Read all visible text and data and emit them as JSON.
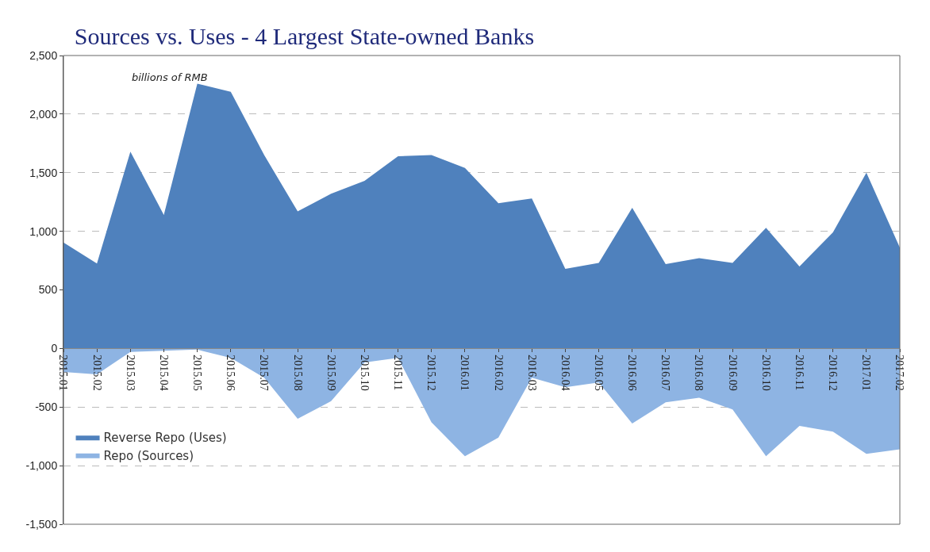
{
  "chart_data": {
    "type": "area",
    "title": "Sources vs. Uses - 4 Largest State-owned Banks",
    "annotations": [
      "billions of RMB"
    ],
    "categories": [
      "2015.01",
      "2015.02",
      "2015.03",
      "2015.04",
      "2015.05",
      "2015.06",
      "2015.07",
      "2015.08",
      "2015.09",
      "2015.10",
      "2015.11",
      "2015.12",
      "2016.01",
      "2016.02",
      "2016.03",
      "2016.04",
      "2016.05",
      "2016.06",
      "2016.07",
      "2016.08",
      "2016.09",
      "2016.10",
      "2016.11",
      "2016.12",
      "2017.01",
      "2017.02"
    ],
    "series": [
      {
        "name": "Reverse Repo (Uses)",
        "color": "#4f81bd",
        "values": [
          905,
          725,
          1680,
          1140,
          2260,
          2190,
          1650,
          1170,
          1320,
          1430,
          1640,
          1650,
          1540,
          1240,
          1280,
          680,
          730,
          1200,
          720,
          770,
          730,
          1030,
          700,
          990,
          1500,
          860
        ]
      },
      {
        "name": "Repo (Sources)",
        "color": "#8eb4e3",
        "values": [
          -200,
          -220,
          -30,
          -20,
          -10,
          -80,
          -250,
          -600,
          -450,
          -120,
          -80,
          -630,
          -920,
          -760,
          -250,
          -330,
          -290,
          -640,
          -460,
          -420,
          -520,
          -920,
          -660,
          -710,
          -900,
          -860
        ]
      }
    ],
    "ylim": [
      -1500,
      2500
    ],
    "yticks": [
      {
        "value": -1500,
        "label": "-1,500"
      },
      {
        "value": -1000,
        "label": "-1,000"
      },
      -500,
      0,
      500,
      {
        "value": 1000,
        "label": "1,000"
      },
      {
        "value": 1500,
        "label": "1,500"
      },
      {
        "value": 2000,
        "label": "2,000"
      },
      {
        "value": 2500,
        "label": "2,500"
      }
    ],
    "grid": "y",
    "legend": "bottom left"
  }
}
